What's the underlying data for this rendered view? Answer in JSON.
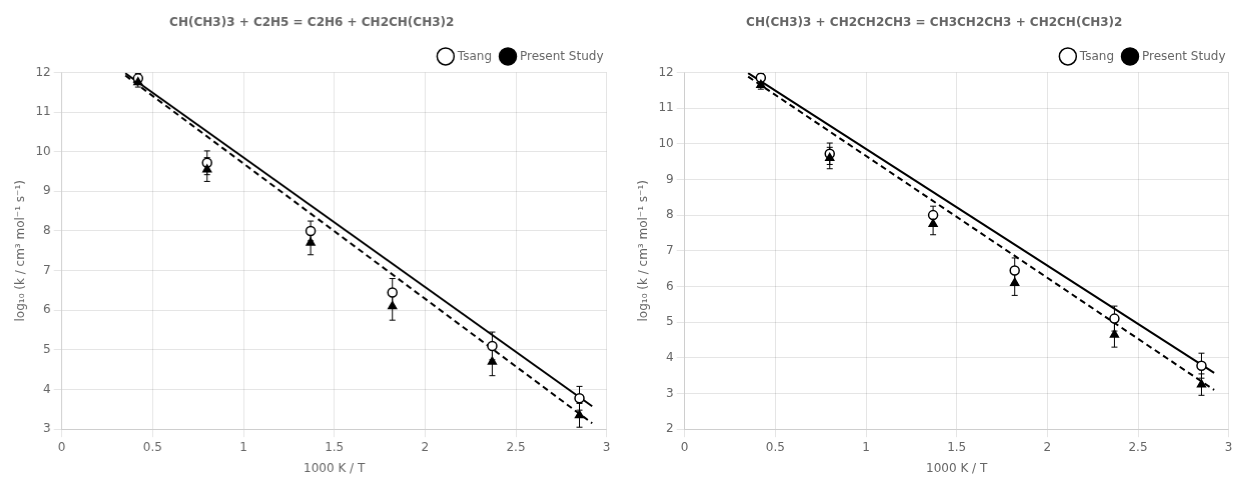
{
  "chart_data": [
    {
      "type": "scatter",
      "title": "CH(CH3)3 + C2H5 = C2H6 + CH2CH(CH3)2",
      "xlabel": "1000 K / T",
      "ylabel": "log₁₀ (k / cm³ mol⁻¹ s⁻¹)",
      "xlim": [
        0,
        3
      ],
      "ylim": [
        3,
        12
      ],
      "xticks": [
        0,
        0.5,
        1,
        1.5,
        2,
        2.5,
        3
      ],
      "yticks": [
        3,
        4,
        5,
        6,
        7,
        8,
        9,
        10,
        11,
        12
      ],
      "grid": true,
      "legend": "upper right",
      "series": [
        {
          "name": "Present Study",
          "type": "line",
          "line_style": "dashed",
          "marker": "none",
          "color": "#000000",
          "x": [
            0.35,
            2.92
          ],
          "values": [
            11.92,
            3.15
          ]
        },
        {
          "type": "line",
          "line_style": "solid",
          "marker": "none",
          "color": "#000000",
          "x": [
            0.35,
            2.92
          ],
          "values": [
            11.98,
            3.58
          ]
        },
        {
          "type": "scatter",
          "marker": "triangle",
          "color": "#000000",
          "x": [
            0.42,
            0.8,
            1.37,
            1.82,
            2.37,
            2.85
          ],
          "values": [
            11.75,
            9.55,
            7.7,
            6.1,
            4.7,
            3.35
          ],
          "yerr": [
            0.12,
            0.3,
            0.3,
            0.35,
            0.35,
            0.3
          ]
        },
        {
          "name": "Tsang",
          "type": "scatter",
          "marker": "open circle",
          "color": "#000000",
          "x": [
            0.42,
            0.8,
            1.37,
            1.82,
            2.37,
            2.85
          ],
          "values": [
            11.85,
            9.72,
            8.0,
            6.45,
            5.1,
            3.78
          ],
          "yerr": [
            0.12,
            0.3,
            0.25,
            0.35,
            0.35,
            0.3
          ]
        }
      ]
    },
    {
      "type": "scatter",
      "title": "CH(CH3)3 + CH2CH2CH3 = CH3CH2CH3 + CH2CH(CH3)2",
      "xlabel": "1000 K / T",
      "ylabel": "log₁₀ (k / cm³ mol⁻¹ s⁻¹)",
      "xlim": [
        0,
        3
      ],
      "ylim": [
        2,
        12
      ],
      "xticks": [
        0,
        0.5,
        1,
        1.5,
        2,
        2.5,
        3
      ],
      "yticks": [
        2,
        3,
        4,
        5,
        6,
        7,
        8,
        9,
        10,
        11,
        12
      ],
      "grid": true,
      "legend": "upper right",
      "series": [
        {
          "name": "Present Study",
          "type": "line",
          "line_style": "dashed",
          "marker": "none",
          "color": "#000000",
          "x": [
            0.35,
            2.92
          ],
          "values": [
            11.88,
            3.1
          ]
        },
        {
          "type": "line",
          "line_style": "solid",
          "marker": "none",
          "color": "#000000",
          "x": [
            0.35,
            2.92
          ],
          "values": [
            11.98,
            3.58
          ]
        },
        {
          "type": "scatter",
          "marker": "triangle",
          "color": "#000000",
          "x": [
            0.42,
            0.8,
            1.37,
            1.82,
            2.37,
            2.85
          ],
          "values": [
            11.65,
            9.6,
            7.75,
            6.1,
            4.65,
            3.25
          ],
          "yerr": [
            0.12,
            0.3,
            0.3,
            0.35,
            0.35,
            0.3
          ]
        },
        {
          "name": "Tsang",
          "type": "scatter",
          "marker": "open circle",
          "color": "#000000",
          "x": [
            0.42,
            0.8,
            1.37,
            1.82,
            2.37,
            2.85
          ],
          "values": [
            11.85,
            9.72,
            8.0,
            6.45,
            5.1,
            3.78
          ],
          "yerr": [
            0.12,
            0.3,
            0.25,
            0.35,
            0.35,
            0.35
          ]
        }
      ]
    }
  ]
}
